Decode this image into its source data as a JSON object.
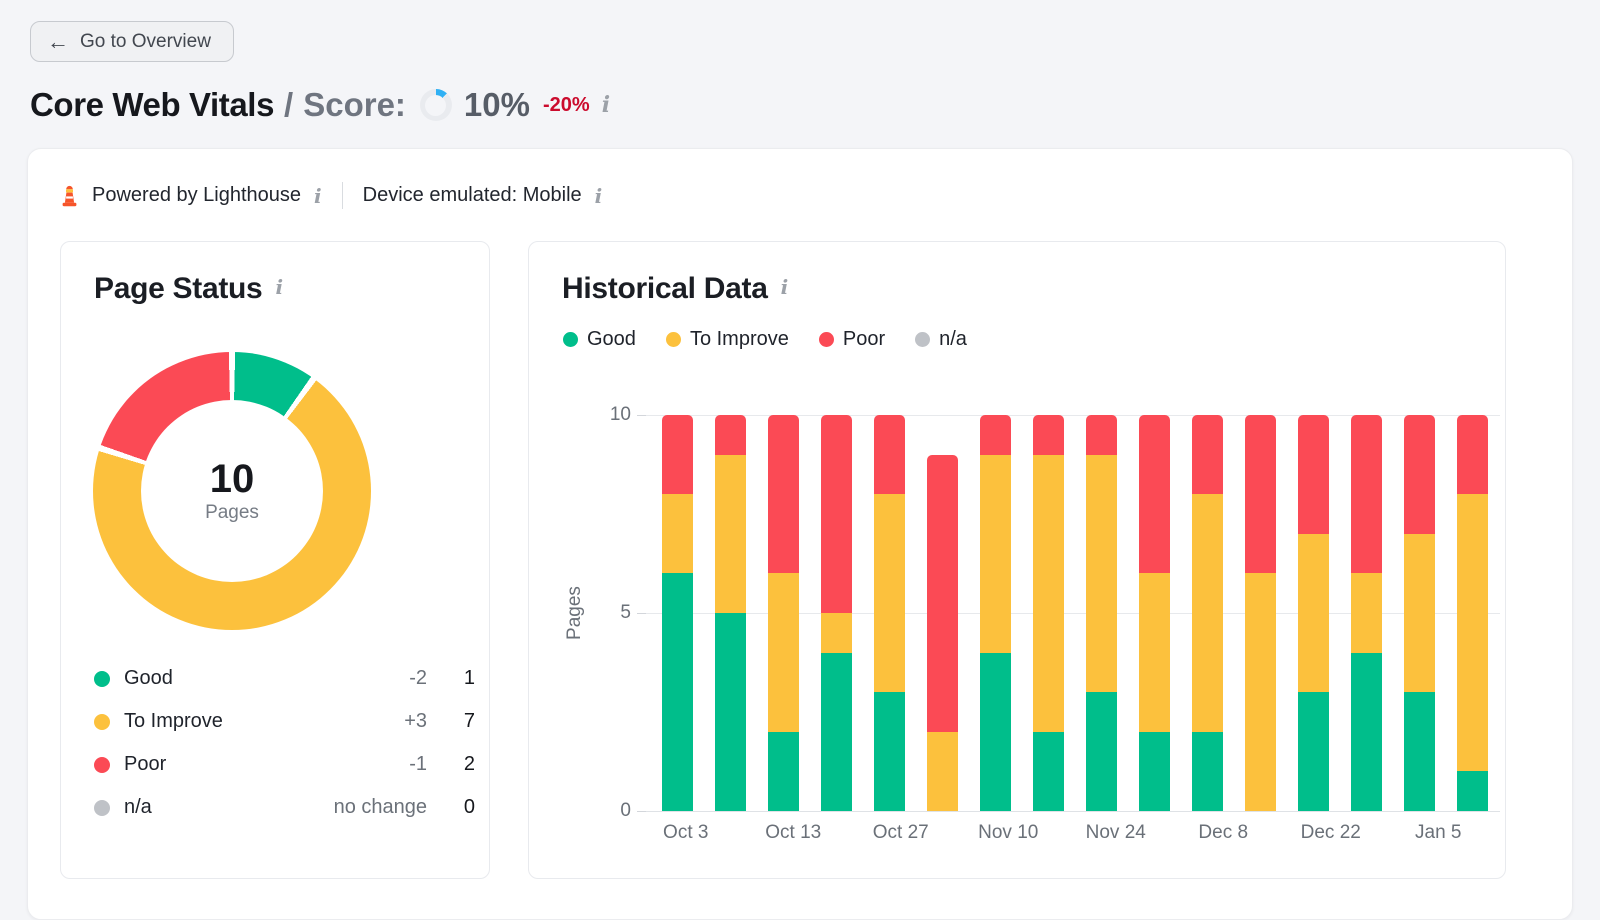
{
  "page": {
    "back_button": {
      "label": "Go to Overview",
      "icon": "arrow-left"
    },
    "title": "Core Web Vitals",
    "separator": "/",
    "score_label": "Score:",
    "score_value": "10%",
    "score_percent": 10,
    "score_change": "-20%",
    "info_icon": "i",
    "meta": {
      "powered_by": "Powered by Lighthouse",
      "device": "Device emulated: Mobile"
    }
  },
  "colors": {
    "good": "#00BE8B",
    "to_improve": "#FCC13D",
    "poor": "#FB4A55",
    "na": "#BFC2C7",
    "score_arc": "#2FB0F4",
    "score_track": "#E9EBEF"
  },
  "page_status": {
    "title": "Page Status",
    "total_value": "10",
    "total_label": "Pages",
    "legend": [
      {
        "key": "good",
        "label": "Good",
        "change": "-2",
        "value": "1"
      },
      {
        "key": "to_improve",
        "label": "To Improve",
        "change": "+3",
        "value": "7"
      },
      {
        "key": "poor",
        "label": "Poor",
        "change": "-1",
        "value": "2"
      },
      {
        "key": "na",
        "label": "n/a",
        "change": "no change",
        "value": "0"
      }
    ]
  },
  "chart_data": {
    "type": "bar",
    "stacked": true,
    "title": "Historical Data",
    "ylabel": "Pages",
    "ylim": [
      0,
      10
    ],
    "yticks": [
      10,
      5,
      0
    ],
    "ytick_labels": {
      "top": "10",
      "mid": "5",
      "bottom": "0"
    },
    "grid": "horizontal",
    "legend_position": "top",
    "legend": [
      {
        "key": "good",
        "label": "Good"
      },
      {
        "key": "to_improve",
        "label": "To Improve"
      },
      {
        "key": "poor",
        "label": "Poor"
      },
      {
        "key": "na",
        "label": "n/a"
      }
    ],
    "x_tick_labels": [
      "Oct 3",
      "Oct 13",
      "Oct 27",
      "Nov 10",
      "Nov 24",
      "Dec 8",
      "Dec 22",
      "Jan 5"
    ],
    "series_order_bottom_to_top": [
      "good",
      "to_improve",
      "poor"
    ],
    "bars": [
      {
        "good": 6,
        "to_improve": 2,
        "poor": 2
      },
      {
        "good": 5,
        "to_improve": 4,
        "poor": 1
      },
      {
        "good": 2,
        "to_improve": 4,
        "poor": 4
      },
      {
        "good": 4,
        "to_improve": 1,
        "poor": 5
      },
      {
        "good": 3,
        "to_improve": 5,
        "poor": 2
      },
      {
        "good": 0,
        "to_improve": 2,
        "poor": 7
      },
      {
        "good": 4,
        "to_improve": 5,
        "poor": 1
      },
      {
        "good": 2,
        "to_improve": 7,
        "poor": 1
      },
      {
        "good": 3,
        "to_improve": 6,
        "poor": 1
      },
      {
        "good": 2,
        "to_improve": 4,
        "poor": 4
      },
      {
        "good": 2,
        "to_improve": 6,
        "poor": 2
      },
      {
        "good": 0,
        "to_improve": 6,
        "poor": 4
      },
      {
        "good": 3,
        "to_improve": 4,
        "poor": 3
      },
      {
        "good": 4,
        "to_improve": 2,
        "poor": 4
      },
      {
        "good": 3,
        "to_improve": 4,
        "poor": 3
      },
      {
        "good": 1,
        "to_improve": 7,
        "poor": 2
      }
    ]
  }
}
